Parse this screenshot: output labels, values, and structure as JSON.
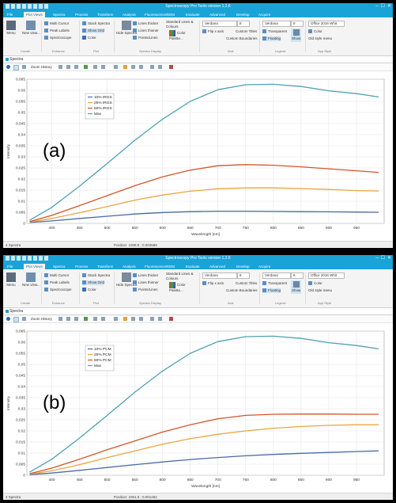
{
  "app": {
    "title": "Spectroscopy Pro Tools version 1.2.6",
    "tabs": [
      "File",
      "Plot Views",
      "Spectra",
      "Process",
      "Transform",
      "Analysis",
      "Fluorescence/EEM",
      "Evaluate",
      "Advanced",
      "Develop",
      "Acquire"
    ],
    "window_buttons": [
      "–",
      "☐",
      "✕"
    ],
    "ribbon": {
      "menu_label": "Menu",
      "new_view_label": "New view...",
      "create_group": "Create",
      "multi_cursor": "Multi Cursor",
      "peak_labels": "Peak Labels",
      "spectroscope": "Spectroscope",
      "enhance_group": "Enhance",
      "stack_spectra": "Stack Spectra",
      "show_grid": "Show Grid",
      "color_label": "Color",
      "plot_group": "Plot",
      "hide_spectra": "Hide Spectra",
      "lines_thicker": "Lines thicker",
      "lines_thinner": "Lines thinner",
      "points_lines": "Points/Lines",
      "standard_lines": "Standard Lines & Colours",
      "color_palette": "Color Palette...",
      "spectra_display_group": "Spectra Display",
      "font_name": "Verdana",
      "font_size": "8",
      "flip_x_axis": "Flip x axis",
      "custom_titles": "Custom Titles",
      "custom_boundaries": "Custom Boundaries",
      "axis_group": "Axis",
      "legend_font": "Verdana",
      "legend_size": "8",
      "transparent": "Transparent",
      "floating": "Floating",
      "show_label": "Show",
      "legend_group": "Legend",
      "style_value": "Office 2016 Whit",
      "color2": "Color",
      "old_style_menu": "Old style menu",
      "app_style_group": "App Style"
    },
    "doc_tab": "Spectra",
    "zoom_history": "Zoom History",
    "status_left": "4 Spectra"
  },
  "panels": [
    {
      "label": "(a)",
      "position_readout": "Position: 1008.9 ; 0.003589"
    },
    {
      "label": "(b)",
      "position_readout": "Position: 1051.9 ; 0.001462"
    }
  ],
  "chart_data": [
    {
      "type": "line",
      "panel_label": "(a)",
      "xlabel": "Wavelength [nm]",
      "ylabel": "Intensity",
      "xlim": [
        355,
        1000
      ],
      "ylim": [
        0,
        0.065
      ],
      "x_ticks": [
        400,
        450,
        500,
        550,
        600,
        650,
        700,
        750,
        800,
        850,
        900,
        950
      ],
      "y_ticks": [
        0,
        0.005,
        0.01,
        0.015,
        0.02,
        0.025,
        0.03,
        0.035,
        0.04,
        0.045,
        0.05,
        0.055,
        0.06,
        0.065
      ],
      "y_tick_labels": [
        "0",
        "0.005",
        "0.01",
        "0.015",
        "0.02",
        "0.025",
        "0.03",
        "0.035",
        "0.04",
        "0.045",
        "0.05",
        "0.055",
        "0.06",
        "0.065"
      ],
      "grid": true,
      "legend_position": "top-left",
      "x": [
        360,
        400,
        450,
        500,
        550,
        600,
        650,
        700,
        750,
        800,
        850,
        900,
        950,
        990
      ],
      "series": [
        {
          "name": "10% IRGS",
          "color": "#4a6aa5",
          "values": [
            0.0004,
            0.0011,
            0.0022,
            0.0032,
            0.0042,
            0.0049,
            0.0053,
            0.0055,
            0.0055,
            0.0054,
            0.0053,
            0.0052,
            0.0051,
            0.005
          ]
        },
        {
          "name": "25% IRGS",
          "color": "#e8a642",
          "values": [
            0.0006,
            0.0022,
            0.0048,
            0.0076,
            0.0105,
            0.0128,
            0.0145,
            0.0156,
            0.016,
            0.016,
            0.0157,
            0.0153,
            0.0148,
            0.0146
          ]
        },
        {
          "name": "50% IRGS",
          "color": "#d0562a",
          "values": [
            0.0008,
            0.0036,
            0.008,
            0.0125,
            0.017,
            0.021,
            0.024,
            0.026,
            0.0265,
            0.0262,
            0.0255,
            0.0246,
            0.0237,
            0.023
          ]
        },
        {
          "name": "Max",
          "color": "#4fa0b4",
          "values": [
            0.0014,
            0.0072,
            0.0168,
            0.027,
            0.0375,
            0.047,
            0.055,
            0.0603,
            0.0625,
            0.0627,
            0.0617,
            0.0598,
            0.0585,
            0.057
          ]
        }
      ]
    },
    {
      "type": "line",
      "panel_label": "(b)",
      "xlabel": "Wavelength [nm]",
      "ylabel": "Intensity",
      "xlim": [
        355,
        1000
      ],
      "ylim": [
        0,
        0.065
      ],
      "x_ticks": [
        400,
        450,
        500,
        550,
        600,
        650,
        700,
        750,
        800,
        850,
        900,
        950
      ],
      "y_ticks": [
        0,
        0.005,
        0.01,
        0.015,
        0.02,
        0.025,
        0.03,
        0.035,
        0.04,
        0.045,
        0.05,
        0.055,
        0.06,
        0.065
      ],
      "y_tick_labels": [
        "0",
        "0.005",
        "0.01",
        "0.015",
        "0.02",
        "0.025",
        "0.03",
        "0.035",
        "0.04",
        "0.045",
        "0.05",
        "0.055",
        "0.06",
        "0.065"
      ],
      "grid": true,
      "legend_position": "top-left",
      "x": [
        360,
        400,
        450,
        500,
        550,
        600,
        650,
        700,
        750,
        800,
        850,
        900,
        950,
        990
      ],
      "series": [
        {
          "name": "10% PCM",
          "color": "#4a6aa5",
          "values": [
            0.0003,
            0.001,
            0.0022,
            0.0035,
            0.0048,
            0.006,
            0.0071,
            0.008,
            0.0088,
            0.0094,
            0.0099,
            0.0103,
            0.0107,
            0.011
          ]
        },
        {
          "name": "25% PCM",
          "color": "#e8a642",
          "values": [
            0.0005,
            0.002,
            0.0048,
            0.008,
            0.011,
            0.014,
            0.0165,
            0.0185,
            0.02,
            0.0212,
            0.022,
            0.0225,
            0.0228,
            0.0228
          ]
        },
        {
          "name": "50% PCM",
          "color": "#d0562a",
          "values": [
            0.0007,
            0.0032,
            0.0072,
            0.0115,
            0.0155,
            0.0195,
            0.0228,
            0.0255,
            0.027,
            0.0275,
            0.0276,
            0.0276,
            0.0275,
            0.0275
          ]
        },
        {
          "name": "Max",
          "color": "#4fa0b4",
          "values": [
            0.0014,
            0.0072,
            0.0168,
            0.027,
            0.0375,
            0.047,
            0.055,
            0.0603,
            0.0625,
            0.0627,
            0.0617,
            0.0598,
            0.0585,
            0.057
          ]
        }
      ]
    }
  ]
}
